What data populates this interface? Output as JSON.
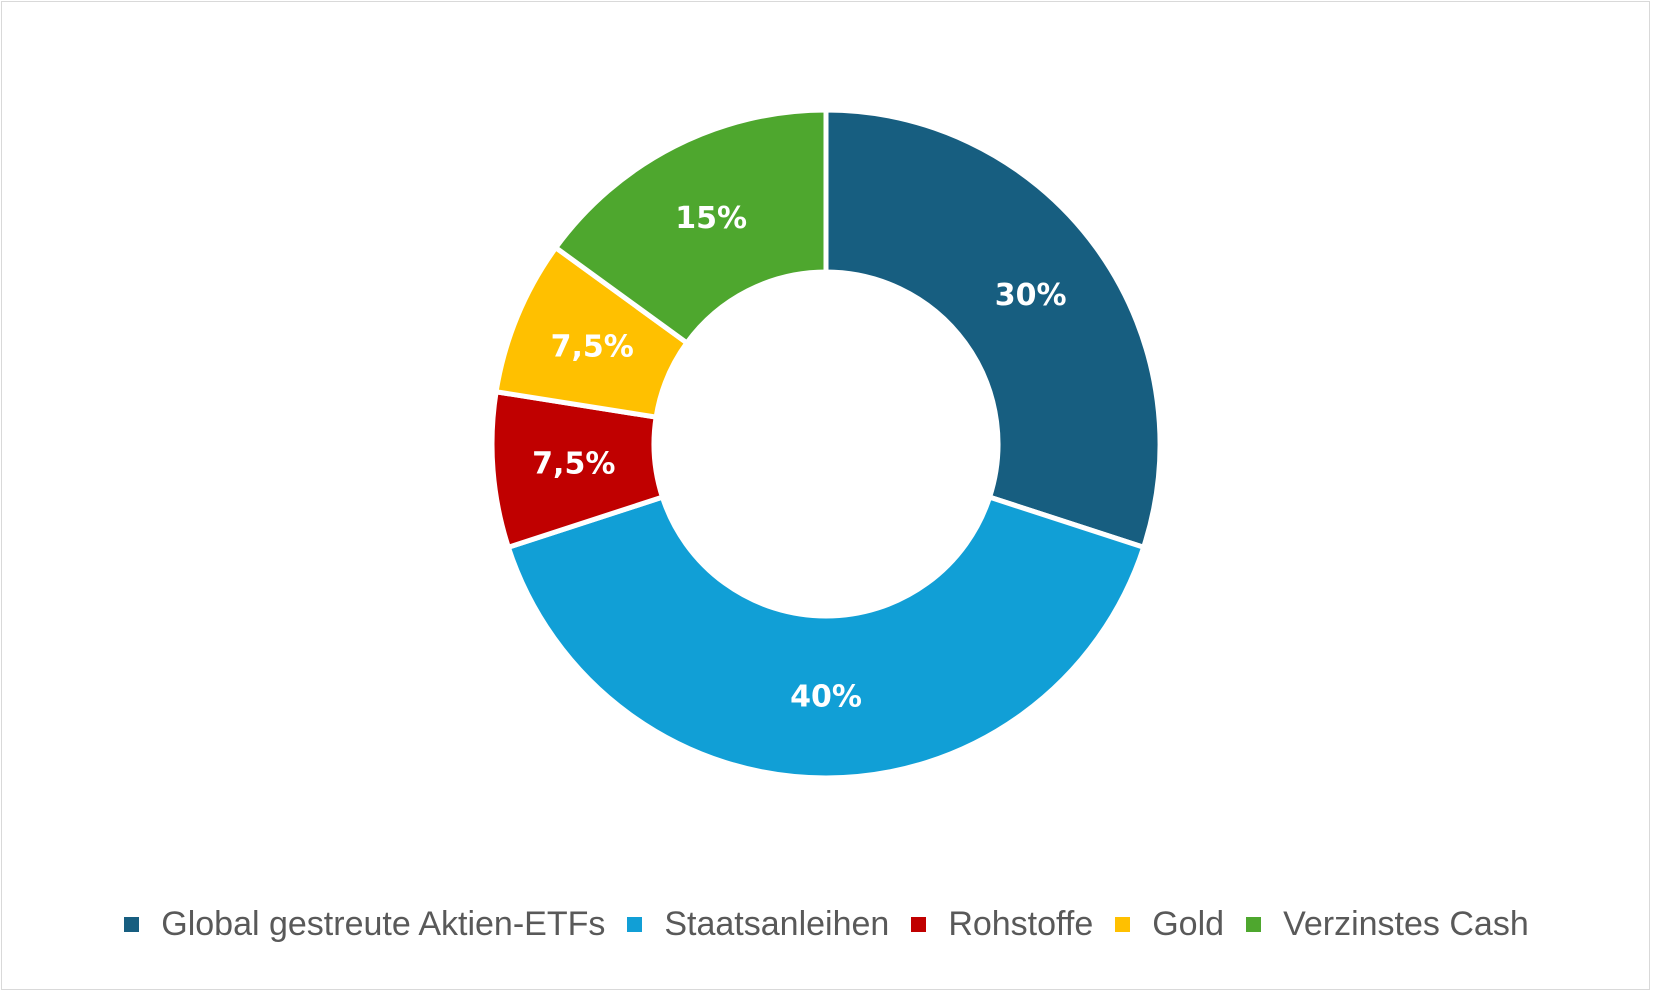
{
  "chart_data": {
    "type": "pie",
    "variant": "donut",
    "title": "",
    "categories": [
      "Global gestreute Aktien-ETFs",
      "Staatsanleihen",
      "Rohstoffe",
      "Gold",
      "Verzinstes Cash"
    ],
    "values": [
      30,
      40,
      7.5,
      7.5,
      15
    ],
    "labels": [
      "30%",
      "40%",
      "7,5%",
      "7,5%",
      "15%"
    ],
    "colors": [
      "#175e80",
      "#119fd6",
      "#c00000",
      "#ffc000",
      "#4ea72e"
    ],
    "legend_position": "bottom",
    "start_direction": "top",
    "direction": "clockwise"
  }
}
